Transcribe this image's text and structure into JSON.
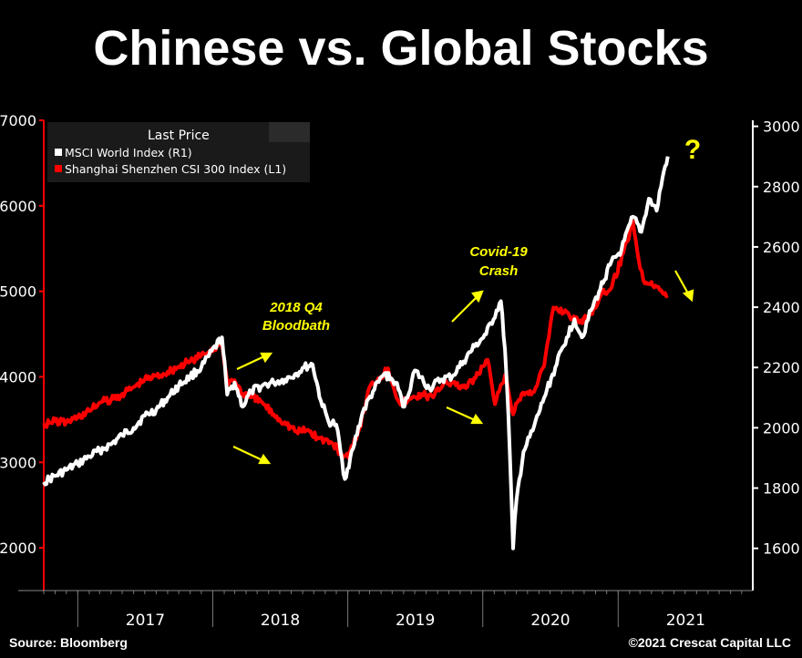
{
  "header": {
    "title": "Chinese vs. Global Stocks"
  },
  "footer": {
    "source": "Source: Bloomberg",
    "copyright": "©2021 Crescat Capital LLC"
  },
  "chart_data": {
    "type": "line",
    "title": "Chinese vs. Global Stocks",
    "legend": {
      "title": "Last Price",
      "placement": "top-left",
      "items": [
        "MSCI World Index  (R1)",
        "Shanghai Shenzhen CSI 300 Index  (L1)"
      ]
    },
    "x_axis": {
      "type": "date",
      "range": [
        "2016-10-01",
        "2021-12-31"
      ],
      "tick_labels": [
        "2017",
        "2018",
        "2019",
        "2020",
        "2021"
      ]
    },
    "y_left": {
      "range": [
        1500,
        7000
      ],
      "ticks": [
        2000,
        3000,
        4000,
        5000,
        6000,
        7000
      ],
      "color": "#ff0000"
    },
    "y_right": {
      "range": [
        1460,
        3020
      ],
      "ticks": [
        1600,
        1800,
        2000,
        2200,
        2400,
        2600,
        2800,
        3000
      ],
      "color": "#ffffff"
    },
    "series": [
      {
        "name": "MSCI World Index  (R1)",
        "axis": "right",
        "color": "#ffffff",
        "x": [
          "2016-10-01",
          "2016-11-01",
          "2016-12-01",
          "2017-01-01",
          "2017-02-01",
          "2017-03-01",
          "2017-04-01",
          "2017-05-01",
          "2017-06-01",
          "2017-07-01",
          "2017-08-01",
          "2017-09-01",
          "2017-10-01",
          "2017-11-01",
          "2017-12-01",
          "2018-01-26",
          "2018-02-09",
          "2018-03-01",
          "2018-03-23",
          "2018-04-15",
          "2018-05-15",
          "2018-06-15",
          "2018-07-15",
          "2018-08-15",
          "2018-09-05",
          "2018-09-28",
          "2018-10-20",
          "2018-11-10",
          "2018-12-01",
          "2018-12-24",
          "2019-01-15",
          "2019-02-10",
          "2019-03-10",
          "2019-04-10",
          "2019-05-10",
          "2019-06-03",
          "2019-07-01",
          "2019-08-10",
          "2019-09-10",
          "2019-10-10",
          "2019-11-10",
          "2019-12-10",
          "2020-01-10",
          "2020-02-19",
          "2020-03-01",
          "2020-03-10",
          "2020-03-23",
          "2020-04-01",
          "2020-04-20",
          "2020-05-15",
          "2020-06-15",
          "2020-07-15",
          "2020-08-15",
          "2020-09-05",
          "2020-09-25",
          "2020-10-20",
          "2020-11-10",
          "2020-12-10",
          "2021-01-10",
          "2021-02-10",
          "2021-03-05",
          "2021-03-25",
          "2021-04-15",
          "2021-05-01",
          "2021-05-15"
        ],
        "values": [
          1820,
          1840,
          1860,
          1880,
          1905,
          1925,
          1945,
          1975,
          2000,
          2040,
          2060,
          2100,
          2140,
          2170,
          2200,
          2300,
          2110,
          2150,
          2070,
          2120,
          2140,
          2150,
          2160,
          2180,
          2200,
          2210,
          2090,
          2020,
          2010,
          1830,
          1930,
          2050,
          2120,
          2180,
          2150,
          2070,
          2190,
          2130,
          2160,
          2170,
          2220,
          2270,
          2310,
          2420,
          2260,
          2050,
          1600,
          1760,
          1920,
          1990,
          2100,
          2200,
          2300,
          2360,
          2300,
          2390,
          2450,
          2540,
          2590,
          2700,
          2650,
          2760,
          2720,
          2830,
          2900
        ]
      },
      {
        "name": "Shanghai Shenzhen CSI 300 Index  (L1)",
        "axis": "left",
        "color": "#ff0000",
        "x": [
          "2016-10-01",
          "2016-11-01",
          "2016-12-01",
          "2017-01-01",
          "2017-02-01",
          "2017-03-01",
          "2017-04-01",
          "2017-05-01",
          "2017-06-01",
          "2017-07-01",
          "2017-08-01",
          "2017-09-01",
          "2017-10-01",
          "2017-11-01",
          "2017-12-01",
          "2018-01-24",
          "2018-02-09",
          "2018-03-01",
          "2018-03-23",
          "2018-04-15",
          "2018-05-15",
          "2018-06-15",
          "2018-07-15",
          "2018-08-15",
          "2018-09-15",
          "2018-10-15",
          "2018-11-15",
          "2018-12-15",
          "2019-01-03",
          "2019-02-01",
          "2019-03-01",
          "2019-04-20",
          "2019-05-20",
          "2019-06-20",
          "2019-07-20",
          "2019-08-20",
          "2019-09-20",
          "2019-10-20",
          "2019-11-20",
          "2019-12-20",
          "2020-01-14",
          "2020-02-03",
          "2020-03-01",
          "2020-03-23",
          "2020-04-15",
          "2020-05-15",
          "2020-06-15",
          "2020-07-10",
          "2020-08-15",
          "2020-09-15",
          "2020-10-15",
          "2020-11-15",
          "2020-12-15",
          "2021-01-15",
          "2021-02-10",
          "2021-02-25",
          "2021-03-10",
          "2021-04-01",
          "2021-04-20",
          "2021-05-01",
          "2021-05-15"
        ],
        "values": [
          3450,
          3480,
          3470,
          3530,
          3600,
          3700,
          3730,
          3800,
          3880,
          3970,
          4010,
          4060,
          4120,
          4180,
          4250,
          4380,
          3950,
          3960,
          3800,
          3760,
          3700,
          3560,
          3470,
          3360,
          3380,
          3280,
          3240,
          3100,
          3050,
          3390,
          3880,
          4100,
          3700,
          3740,
          3800,
          3760,
          3960,
          3900,
          3880,
          4030,
          4200,
          3680,
          4020,
          3560,
          3800,
          3820,
          4130,
          4810,
          4760,
          4640,
          4720,
          4950,
          5050,
          5450,
          5820,
          5380,
          5130,
          5110,
          5050,
          4980,
          4950
        ]
      }
    ],
    "annotations": [
      {
        "text": "2018 Q4",
        "line2": "Bloodbath"
      },
      {
        "text": "Covid-19",
        "line2": "Crash"
      },
      {
        "text": "?"
      }
    ]
  }
}
